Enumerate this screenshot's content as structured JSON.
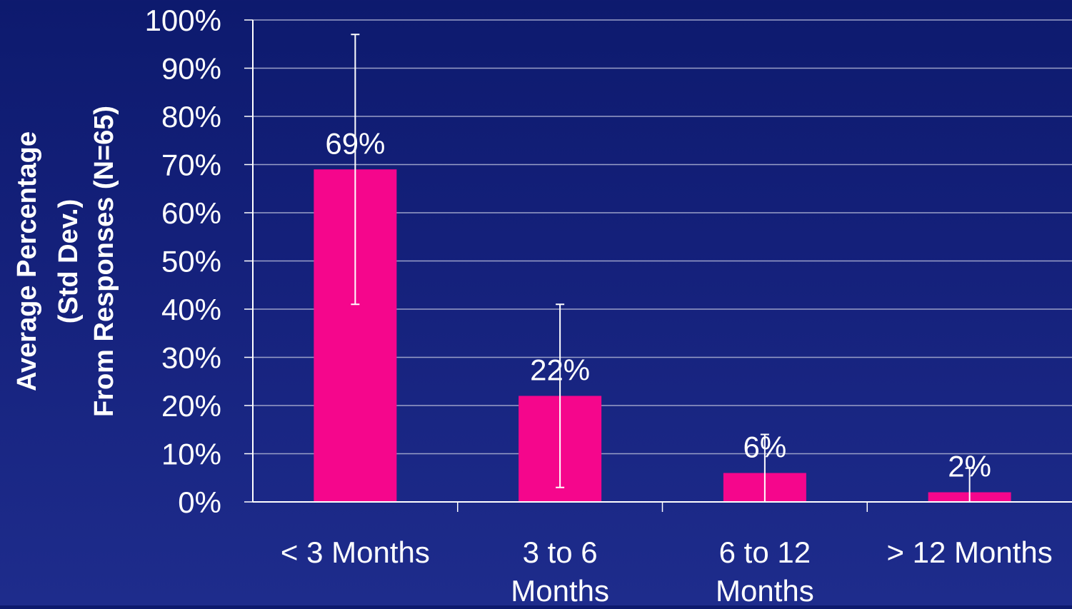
{
  "chart_data": {
    "type": "bar",
    "categories": [
      [
        "< 3 Months"
      ],
      [
        "3 to 6",
        "Months"
      ],
      [
        "6 to 12",
        "Months"
      ],
      [
        "> 12 Months"
      ]
    ],
    "values": [
      69,
      22,
      6,
      2
    ],
    "data_labels": [
      "69%",
      "22%",
      "6%",
      "2%"
    ],
    "error_bars": [
      {
        "low": 41,
        "high": 97
      },
      {
        "low": 3,
        "high": 41
      },
      {
        "low": 0,
        "high": 14
      },
      {
        "low": 0,
        "high": 7
      }
    ],
    "ylabel_lines": [
      "Average Percentage",
      "(Std Dev.)",
      "From Responses (N=65)"
    ],
    "y_ticks": [
      "0%",
      "10%",
      "20%",
      "30%",
      "40%",
      "50%",
      "60%",
      "70%",
      "80%",
      "90%",
      "100%"
    ],
    "ylim": [
      0,
      100
    ],
    "grid": true,
    "colors": {
      "bar": "#f5068c",
      "grid": "#9aa0c8",
      "axis": "#ffffff",
      "error_bar": "#ffffff"
    }
  }
}
